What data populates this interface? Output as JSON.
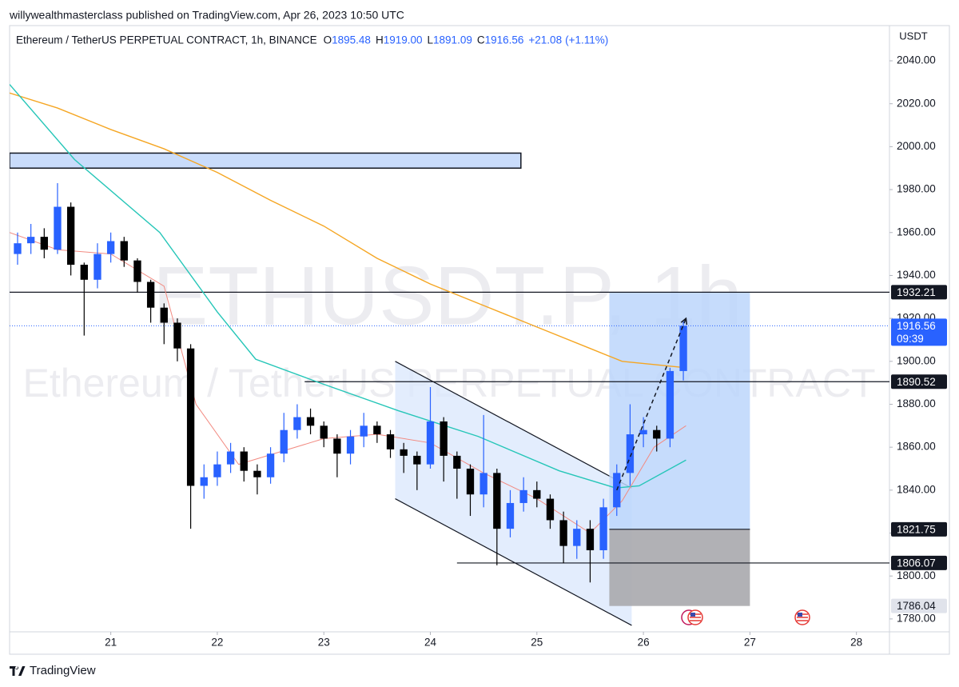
{
  "header": {
    "publisher": "willywealthmasterclass published on TradingView.com, Apr 26, 2023 10:50 UTC"
  },
  "chart_data": {
    "type": "candlestick",
    "symbol": "Ethereum / TetherUS PERPETUAL CONTRACT, 1h, BINANCE",
    "ohlc_prefixes": [
      "O",
      "H",
      "L",
      "C"
    ],
    "ohlc": [
      1895.48,
      {
        "value": 1919,
        "label": "1919.00"
      },
      1891.09,
      1916.56
    ],
    "change": {
      "value": 21.08,
      "label": "+21.08"
    },
    "change_pct": {
      "value": 1.11,
      "label": "(+1.11%)"
    },
    "watermark": [
      "ETHUSDT.P, 1h",
      "Ethereum / TetherUS PERPETUAL CONTRACT"
    ],
    "y_unit": "USDT",
    "up_color": "#2962ff",
    "down_color": "#000000",
    "x": [
      20.125,
      20.25,
      20.375,
      20.5,
      20.625,
      20.75,
      20.875,
      21.0,
      21.125,
      21.25,
      21.375,
      21.5,
      21.625,
      21.75,
      21.875,
      22.0,
      22.125,
      22.25,
      22.375,
      22.5,
      22.625,
      22.75,
      22.875,
      23.0,
      23.125,
      23.25,
      23.375,
      23.5,
      23.625,
      23.75,
      23.875,
      24.0,
      24.125,
      24.25,
      24.375,
      24.5,
      24.625,
      24.75,
      24.875,
      25.0,
      25.125,
      25.25,
      25.375,
      25.5,
      25.625,
      25.75,
      25.875,
      26.0,
      26.125,
      26.25,
      26.375
    ],
    "open": [
      1950,
      1955,
      1958,
      1952,
      1972,
      1945,
      1938,
      1950,
      1956,
      1947,
      1937,
      1925,
      1918,
      1906,
      1842,
      1846,
      1852,
      1858,
      1849,
      1846,
      1857,
      1868,
      1874,
      1870,
      1864,
      1857,
      1865,
      1870,
      1866,
      1859,
      1856,
      1852,
      1872,
      1856,
      1850,
      1838,
      1848,
      1822,
      1834,
      1840,
      1836,
      1826,
      1814,
      1822,
      1812,
      1832,
      1848,
      1866,
      1868,
      1864,
      1895.48
    ],
    "high": [
      1960,
      1964,
      1962,
      1983,
      1974,
      1946,
      1955,
      1960,
      1958,
      1948,
      1938,
      1927,
      1920,
      1908,
      1852,
      1858,
      1862,
      1860,
      1852,
      1860,
      1876,
      1880,
      1878,
      1872,
      1866,
      1868,
      1876,
      1872,
      1868,
      1862,
      1858,
      1888,
      1874,
      1858,
      1852,
      1875,
      1850,
      1840,
      1846,
      1844,
      1838,
      1830,
      1826,
      1826,
      1836,
      1852,
      1880,
      1874,
      1870,
      1897,
      1919
    ],
    "low": [
      1945,
      1950,
      1948,
      1950,
      1940,
      1912,
      1934,
      1946,
      1944,
      1932,
      1918,
      1908,
      1900,
      1822,
      1836,
      1842,
      1848,
      1844,
      1838,
      1843,
      1853,
      1864,
      1866,
      1860,
      1846,
      1852,
      1860,
      1862,
      1855,
      1848,
      1840,
      1850,
      1844,
      1836,
      1828,
      1832,
      1805,
      1818,
      1830,
      1832,
      1822,
      1806,
      1808,
      1797,
      1808,
      1828,
      1842,
      1860,
      1858,
      1860,
      1891.09
    ],
    "close": [
      1955,
      1958,
      1952,
      1972,
      1945,
      1938,
      1950,
      1956,
      1947,
      1937,
      1925,
      1918,
      1906,
      1842,
      1846,
      1852,
      1858,
      1849,
      1846,
      1857,
      1868,
      1874,
      1870,
      1864,
      1857,
      1865,
      1870,
      1866,
      1859,
      1856,
      1852,
      1872,
      1856,
      1850,
      1838,
      1848,
      1822,
      1834,
      1840,
      1836,
      1826,
      1814,
      1822,
      1812,
      1832,
      1848,
      1866,
      1868,
      1864,
      1895.48,
      1916.56
    ],
    "moving_averages": [
      {
        "color": "#f5a623",
        "x": [
          20.05,
          20.5,
          21.0,
          21.5,
          22.0,
          22.5,
          23.0,
          23.5,
          24.0,
          24.5,
          25.0,
          25.5,
          25.8,
          26.4
        ],
        "values": [
          2025,
          2018,
          2008,
          1999,
          1988,
          1975,
          1963,
          1948,
          1936,
          1926,
          1916,
          1906,
          1900,
          1897
        ]
      },
      {
        "color": "#26c6b8",
        "x": [
          20.05,
          20.66,
          21.46,
          22.0,
          22.36,
          22.96,
          23.7,
          24.45,
          25.21,
          25.74,
          25.96,
          26.4
        ],
        "values": [
          2029,
          1994,
          1960,
          1923,
          1901,
          1890,
          1877,
          1865,
          1849,
          1841,
          1842,
          1854
        ]
      },
      {
        "color": "#f28b82",
        "x": [
          20.05,
          20.5,
          21.0,
          21.5,
          21.8,
          22.2,
          23.0,
          23.5,
          24.0,
          24.5,
          25.0,
          25.5,
          25.8,
          26.1,
          26.4
        ],
        "values": [
          1960,
          1952,
          1950,
          1935,
          1880,
          1852,
          1864,
          1866,
          1862,
          1848,
          1836,
          1820,
          1835,
          1860,
          1870
        ]
      }
    ],
    "zone": {
      "x": [
        20.05,
        24.85
      ],
      "y": [
        1990,
        1997
      ],
      "color": "#c9dcfb"
    },
    "channel": {
      "x": [
        23.67,
        25.89
      ],
      "upper": [
        1900,
        1841
      ],
      "lower": [
        1836,
        1777
      ],
      "color": "#dce9fc"
    },
    "position": {
      "x": [
        25.68,
        27.0
      ],
      "entry": 1821.75,
      "target": 1932.35,
      "stop": 1786.04,
      "profit_color": "#bcd6fb",
      "loss_color": "#a9a9ad"
    },
    "levels": [
      {
        "value": 1932.21,
        "x0": 20.05
      },
      {
        "value": 1890.52,
        "x0": 22.82
      },
      {
        "value": 1806.07,
        "x0": 24.25
      }
    ],
    "arrow": {
      "x": [
        25.75,
        26.4
      ],
      "y": [
        1840,
        1920
      ]
    },
    "last_price": 1916.56,
    "countdown": "09:39",
    "xlim": [
      20.05,
      28.31
    ],
    "xticks": [
      21,
      22,
      23,
      24,
      25,
      26,
      27,
      28
    ],
    "ylim": [
      1774,
      2056.4
    ],
    "yticks": [
      {
        "value": 1780,
        "label": "1780.00"
      },
      {
        "value": 1800,
        "label": "1800.00"
      },
      {
        "value": 1820,
        "label": "1820.00"
      },
      {
        "value": 1840,
        "label": "1840.00"
      },
      {
        "value": 1860,
        "label": "1860.00"
      },
      {
        "value": 1880,
        "label": "1880.00"
      },
      {
        "value": 1900,
        "label": "1900.00"
      },
      {
        "value": 1920,
        "label": "1920.00"
      },
      {
        "value": 1940,
        "label": "1940.00"
      },
      {
        "value": 1960,
        "label": "1960.00"
      },
      {
        "value": 1980,
        "label": "1980.00"
      },
      {
        "value": 2000,
        "label": "2000.00"
      },
      {
        "value": 2020,
        "label": "2020.00"
      },
      {
        "value": 2040,
        "label": "2040.00"
      }
    ]
  },
  "footer": {
    "brand": "TradingView"
  }
}
